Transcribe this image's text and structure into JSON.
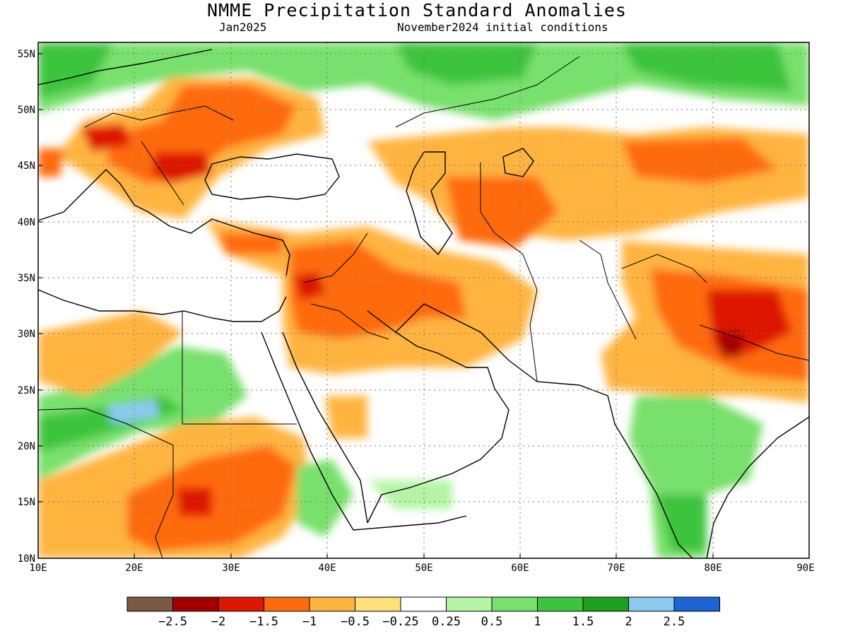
{
  "header": {
    "title": "NMME Precipitation Standard Anomalies",
    "target_month": "Jan2025",
    "initial_conditions": "November2024 initial conditions"
  },
  "map": {
    "region": {
      "lon_min": 10,
      "lon_max": 90,
      "lat_min": 10,
      "lat_max": 56
    },
    "lat_labels": [
      "55N",
      "50N",
      "45N",
      "40N",
      "35N",
      "30N",
      "25N",
      "20N",
      "15N",
      "10N"
    ],
    "lon_labels": [
      "10E",
      "20E",
      "30E",
      "40E",
      "50E",
      "60E",
      "70E",
      "80E",
      "90E"
    ],
    "grid_lines": "dotted",
    "features": [
      "coastlines",
      "country borders"
    ]
  },
  "legend": {
    "colors": [
      "#7a5848",
      "#a50000",
      "#dd1800",
      "#ff6a10",
      "#ffb440",
      "#ffe07a",
      "#ffffff",
      "#b4f4a4",
      "#78e06c",
      "#3cc43c",
      "#1ea01e",
      "#8ccaf0",
      "#1c64d4"
    ],
    "labels": [
      "−2.5",
      "−2",
      "−1.5",
      "−1",
      "−0.5",
      "−0.25",
      "0.25",
      "0.5",
      "1",
      "1.5",
      "2",
      "2.5"
    ]
  }
}
